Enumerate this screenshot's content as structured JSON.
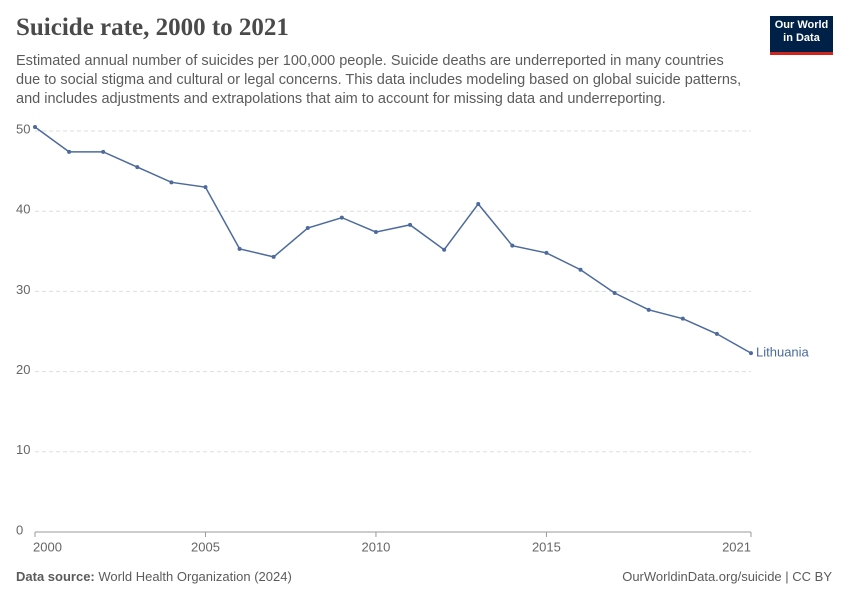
{
  "chart_data": {
    "type": "line",
    "title": "Suicide rate, 2000 to 2021",
    "subtitle": "Estimated annual number of suicides per 100,000 people. Suicide deaths are underreported in many countries due to social stigma and cultural or legal concerns. This data includes modeling based on global suicide patterns, and includes adjustments and extrapolations that aim to account for missing data and underreporting.",
    "logo": "Our World in Data",
    "source_label": "Data source:",
    "source": "World Health Organization (2024)",
    "credit": "OurWorldinData.org/suicide | CC BY",
    "x": [
      2000,
      2001,
      2002,
      2003,
      2004,
      2005,
      2006,
      2007,
      2008,
      2009,
      2010,
      2011,
      2012,
      2013,
      2014,
      2015,
      2016,
      2017,
      2018,
      2019,
      2020,
      2021
    ],
    "series": [
      {
        "name": "Lithuania",
        "color": "#4c6a9c",
        "values": [
          50.5,
          47.4,
          47.4,
          45.5,
          43.6,
          43.0,
          35.3,
          34.3,
          37.9,
          39.2,
          37.4,
          38.3,
          35.2,
          40.9,
          35.7,
          34.8,
          32.7,
          29.8,
          27.7,
          26.6,
          24.7,
          22.3
        ]
      }
    ],
    "xlim": [
      2000,
      2021
    ],
    "xticks": [
      2000,
      2005,
      2010,
      2015,
      2021
    ],
    "ylim": [
      0,
      50
    ],
    "yticks": [
      0,
      10,
      20,
      30,
      40,
      50
    ],
    "grid": true
  }
}
